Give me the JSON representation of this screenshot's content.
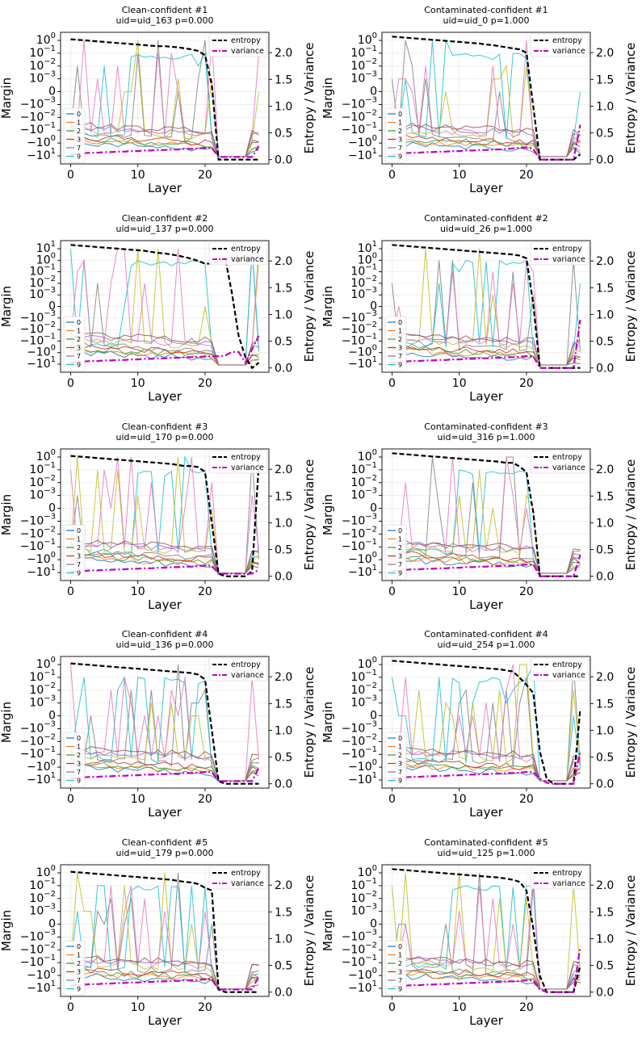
{
  "chart_data": [
    {
      "type": "line",
      "panel": "clean",
      "index": 1,
      "title": "Clean-confident #1",
      "subtitle": "uid=uid_163   p=0.000",
      "xlabel": "Layer",
      "ylabel": "Margin",
      "y2label": "Entropy / Variance",
      "xticks": [
        "0",
        "10",
        "20"
      ],
      "yticks": [
        "10^0",
        "10^-1",
        "10^-2",
        "10^-3",
        "0",
        "-10^-3",
        "-10^-2",
        "-10^-1",
        "-10^0",
        "-10^1"
      ],
      "y2ticks": [
        "0.0",
        "0.5",
        "1.0",
        "1.5",
        "2.0"
      ],
      "legend_lines": [
        "entropy",
        "variance"
      ],
      "legend_series": [
        "0",
        "1",
        "2",
        "3",
        "7",
        "9"
      ],
      "entropy": [
        2.25,
        2.24,
        2.23,
        2.22,
        2.21,
        2.2,
        2.19,
        2.18,
        2.17,
        2.16,
        2.15,
        2.14,
        2.13,
        2.12,
        2.12,
        2.11,
        2.1,
        2.08,
        2.06,
        2.03,
        1.95,
        1.4,
        0.0,
        0.0,
        0.0,
        0.0,
        0.0,
        0.0,
        0.0
      ],
      "variance": [
        0.1,
        0.11,
        0.12,
        0.13,
        0.13,
        0.14,
        0.14,
        0.15,
        0.15,
        0.16,
        0.16,
        0.17,
        0.17,
        0.18,
        0.18,
        0.19,
        0.19,
        0.2,
        0.2,
        0.21,
        0.22,
        0.22,
        0.05,
        0.05,
        0.05,
        0.05,
        0.05,
        0.05,
        0.25
      ]
    },
    {
      "type": "line",
      "panel": "contaminated",
      "index": 1,
      "title": "Contaminated-confident #1",
      "subtitle": "uid=uid_0   p=1.000",
      "xlabel": "Layer",
      "ylabel": "Margin",
      "y2label": "Entropy / Variance",
      "xticks": [
        "0",
        "10",
        "20"
      ],
      "yticks": [
        "10^0",
        "10^-1",
        "10^-2",
        "10^-3",
        "0",
        "-10^-3",
        "-10^-2",
        "-10^-1",
        "-10^0",
        "-10^1"
      ],
      "y2ticks": [
        "0.0",
        "0.5",
        "1.0",
        "1.5",
        "2.0"
      ],
      "legend_lines": [
        "entropy",
        "variance"
      ],
      "legend_series": [
        "0",
        "1",
        "2",
        "3",
        "7",
        "9"
      ],
      "entropy": [
        2.3,
        2.29,
        2.28,
        2.27,
        2.26,
        2.25,
        2.24,
        2.23,
        2.22,
        2.21,
        2.2,
        2.19,
        2.18,
        2.17,
        2.15,
        2.14,
        2.12,
        2.1,
        2.08,
        2.06,
        2.0,
        1.0,
        0.0,
        0.0,
        0.0,
        0.0,
        0.0,
        0.0,
        0.1
      ],
      "variance": [
        0.1,
        0.11,
        0.12,
        0.13,
        0.13,
        0.14,
        0.14,
        0.15,
        0.15,
        0.16,
        0.16,
        0.17,
        0.17,
        0.18,
        0.18,
        0.19,
        0.19,
        0.2,
        0.21,
        0.22,
        0.23,
        0.2,
        0.0,
        0.0,
        0.0,
        0.0,
        0.0,
        0.0,
        0.65
      ]
    },
    {
      "type": "line",
      "panel": "clean",
      "index": 2,
      "title": "Clean-confident #2",
      "subtitle": "uid=uid_137   p=0.000",
      "xlabel": "Layer",
      "ylabel": "Margin",
      "y2label": "Entropy / Variance",
      "xticks": [
        "0",
        "10",
        "20"
      ],
      "yticks": [
        "10^1",
        "10^0",
        "10^-1",
        "10^-2",
        "10^-3",
        "0",
        "-10^-3",
        "-10^-2",
        "-10^-1",
        "-10^0",
        "-10^1"
      ],
      "y2ticks": [
        "0.0",
        "0.5",
        "1.0",
        "1.5",
        "2.0"
      ],
      "legend_lines": [
        "entropy",
        "variance"
      ],
      "legend_series": [
        "0",
        "1",
        "2",
        "3",
        "7",
        "9"
      ],
      "entropy": [
        2.3,
        2.29,
        2.28,
        2.27,
        2.26,
        2.25,
        2.24,
        2.23,
        2.22,
        2.21,
        2.2,
        2.19,
        2.17,
        2.15,
        2.14,
        2.12,
        2.1,
        2.07,
        2.04,
        2.0,
        1.95,
        1.95,
        2.0,
        2.05,
        1.4,
        0.6,
        0.2,
        0.0,
        0.1
      ],
      "variance": [
        0.1,
        0.11,
        0.12,
        0.13,
        0.13,
        0.14,
        0.14,
        0.15,
        0.15,
        0.16,
        0.16,
        0.17,
        0.17,
        0.18,
        0.18,
        0.19,
        0.19,
        0.2,
        0.2,
        0.21,
        0.21,
        0.22,
        0.22,
        0.23,
        0.3,
        0.3,
        0.1,
        0.35,
        0.6
      ]
    },
    {
      "type": "line",
      "panel": "contaminated",
      "index": 2,
      "title": "Contaminated-confident #2",
      "subtitle": "uid=uid_26   p=1.000",
      "xlabel": "Layer",
      "ylabel": "Margin",
      "y2label": "Entropy / Variance",
      "xticks": [
        "0",
        "10",
        "20"
      ],
      "yticks": [
        "10^1",
        "10^0",
        "10^-1",
        "10^-2",
        "10^-3",
        "0",
        "-10^-3",
        "-10^-2",
        "-10^-1",
        "-10^0",
        "-10^1"
      ],
      "y2ticks": [
        "0.0",
        "0.5",
        "1.0",
        "1.5",
        "2.0"
      ],
      "legend_lines": [
        "entropy",
        "variance"
      ],
      "legend_series": [
        "0",
        "1",
        "2",
        "3",
        "7",
        "9"
      ],
      "entropy": [
        2.3,
        2.29,
        2.28,
        2.27,
        2.26,
        2.25,
        2.24,
        2.23,
        2.22,
        2.21,
        2.2,
        2.19,
        2.18,
        2.17,
        2.16,
        2.15,
        2.14,
        2.13,
        2.12,
        2.1,
        2.05,
        1.2,
        0.0,
        0.0,
        0.0,
        0.0,
        0.0,
        0.0,
        0.0
      ],
      "variance": [
        0.1,
        0.11,
        0.12,
        0.13,
        0.13,
        0.14,
        0.14,
        0.15,
        0.15,
        0.16,
        0.16,
        0.17,
        0.17,
        0.18,
        0.18,
        0.19,
        0.19,
        0.2,
        0.2,
        0.21,
        0.22,
        0.22,
        0.0,
        0.0,
        0.0,
        0.0,
        0.0,
        0.0,
        0.9
      ]
    },
    {
      "type": "line",
      "panel": "clean",
      "index": 3,
      "title": "Clean-confident #3",
      "subtitle": "uid=uid_170   p=0.000",
      "xlabel": "Layer",
      "ylabel": "Margin",
      "y2label": "Entropy / Variance",
      "xticks": [
        "0",
        "10",
        "20"
      ],
      "yticks": [
        "10^0",
        "10^-1",
        "10^-2",
        "10^-3",
        "0",
        "-10^-3",
        "-10^-2",
        "-10^-1",
        "-10^0",
        "-10^1"
      ],
      "y2ticks": [
        "0.0",
        "0.5",
        "1.0",
        "1.5",
        "2.0"
      ],
      "legend_lines": [
        "entropy",
        "variance"
      ],
      "legend_series": [
        "0",
        "1",
        "2",
        "3",
        "7",
        "9"
      ],
      "entropy": [
        2.25,
        2.24,
        2.23,
        2.22,
        2.21,
        2.2,
        2.19,
        2.18,
        2.17,
        2.16,
        2.15,
        2.14,
        2.13,
        2.12,
        2.11,
        2.1,
        2.08,
        2.06,
        2.06,
        2.04,
        1.95,
        1.0,
        0.05,
        0.0,
        0.0,
        0.0,
        0.0,
        0.1,
        2.1
      ],
      "variance": [
        0.08,
        0.09,
        0.1,
        0.11,
        0.11,
        0.12,
        0.12,
        0.13,
        0.13,
        0.14,
        0.14,
        0.15,
        0.15,
        0.16,
        0.16,
        0.17,
        0.17,
        0.18,
        0.18,
        0.19,
        0.2,
        0.2,
        0.05,
        0.05,
        0.05,
        0.05,
        0.05,
        0.05,
        0.12
      ]
    },
    {
      "type": "line",
      "panel": "contaminated",
      "index": 3,
      "title": "Contaminated-confident #3",
      "subtitle": "uid=uid_316   p=1.000",
      "xlabel": "Layer",
      "ylabel": "Margin",
      "y2label": "Entropy / Variance",
      "xticks": [
        "0",
        "10",
        "20"
      ],
      "yticks": [
        "10^0",
        "10^-1",
        "10^-2",
        "10^-3",
        "0",
        "-10^-3",
        "-10^-2",
        "-10^-1",
        "-10^0",
        "-10^1"
      ],
      "y2ticks": [
        "0.0",
        "0.5",
        "1.0",
        "1.5",
        "2.0"
      ],
      "legend_lines": [
        "entropy",
        "variance"
      ],
      "legend_series": [
        "0",
        "1",
        "2",
        "3",
        "7",
        "9"
      ],
      "entropy": [
        2.3,
        2.29,
        2.28,
        2.27,
        2.26,
        2.25,
        2.24,
        2.23,
        2.22,
        2.21,
        2.2,
        2.19,
        2.18,
        2.17,
        2.16,
        2.15,
        2.14,
        2.12,
        2.12,
        2.05,
        1.95,
        1.2,
        0.0,
        0.0,
        0.0,
        0.0,
        0.0,
        0.0,
        0.0
      ],
      "variance": [
        0.1,
        0.11,
        0.12,
        0.13,
        0.13,
        0.14,
        0.14,
        0.15,
        0.15,
        0.16,
        0.16,
        0.17,
        0.17,
        0.18,
        0.18,
        0.19,
        0.19,
        0.2,
        0.2,
        0.21,
        0.22,
        0.22,
        0.0,
        0.0,
        0.0,
        0.0,
        0.0,
        0.0,
        0.4
      ]
    },
    {
      "type": "line",
      "panel": "clean",
      "index": 4,
      "title": "Clean-confident #4",
      "subtitle": "uid=uid_136   p=0.000",
      "xlabel": "Layer",
      "ylabel": "Margin",
      "y2label": "Entropy / Variance",
      "xticks": [
        "0",
        "10",
        "20"
      ],
      "yticks": [
        "10^0",
        "10^-1",
        "10^-2",
        "10^-3",
        "0",
        "-10^-3",
        "-10^-2",
        "-10^-1",
        "-10^0",
        "-10^1"
      ],
      "y2ticks": [
        "0.0",
        "0.5",
        "1.0",
        "1.5",
        "2.0"
      ],
      "legend_lines": [
        "entropy",
        "variance"
      ],
      "legend_series": [
        "0",
        "1",
        "2",
        "3",
        "7",
        "9"
      ],
      "entropy": [
        2.25,
        2.24,
        2.23,
        2.22,
        2.21,
        2.2,
        2.19,
        2.18,
        2.17,
        2.16,
        2.15,
        2.14,
        2.13,
        2.12,
        2.11,
        2.1,
        2.09,
        2.08,
        2.07,
        2.04,
        1.95,
        1.0,
        0.05,
        0.0,
        0.0,
        0.0,
        0.0,
        0.0,
        0.0
      ],
      "variance": [
        0.1,
        0.11,
        0.12,
        0.13,
        0.13,
        0.14,
        0.14,
        0.15,
        0.15,
        0.16,
        0.16,
        0.17,
        0.17,
        0.18,
        0.18,
        0.19,
        0.19,
        0.2,
        0.2,
        0.21,
        0.22,
        0.22,
        0.05,
        0.05,
        0.05,
        0.05,
        0.05,
        0.05,
        0.3
      ]
    },
    {
      "type": "line",
      "panel": "contaminated",
      "index": 4,
      "title": "Contaminated-confident #4",
      "subtitle": "uid=uid_254   p=1.000",
      "xlabel": "Layer",
      "ylabel": "Margin",
      "y2label": "Entropy / Variance",
      "xticks": [
        "0",
        "10",
        "20"
      ],
      "yticks": [
        "10^0",
        "10^-1",
        "10^-2",
        "10^-3",
        "0",
        "-10^-3",
        "-10^-2",
        "-10^-1",
        "-10^0",
        "-10^1"
      ],
      "y2ticks": [
        "0.0",
        "0.5",
        "1.0",
        "1.5",
        "2.0"
      ],
      "legend_lines": [
        "entropy",
        "variance"
      ],
      "legend_series": [
        "0",
        "1",
        "2",
        "3",
        "7",
        "9"
      ],
      "entropy": [
        2.3,
        2.29,
        2.28,
        2.27,
        2.26,
        2.25,
        2.24,
        2.23,
        2.22,
        2.21,
        2.2,
        2.19,
        2.18,
        2.17,
        2.16,
        2.15,
        2.14,
        2.12,
        2.1,
        1.98,
        1.85,
        1.7,
        0.6,
        0.1,
        0.0,
        0.0,
        0.0,
        0.0,
        1.4
      ],
      "variance": [
        0.1,
        0.11,
        0.12,
        0.13,
        0.13,
        0.14,
        0.14,
        0.15,
        0.15,
        0.16,
        0.16,
        0.17,
        0.17,
        0.18,
        0.18,
        0.19,
        0.19,
        0.2,
        0.2,
        0.21,
        0.22,
        0.22,
        0.1,
        0.02,
        0.0,
        0.0,
        0.0,
        0.0,
        0.6
      ]
    },
    {
      "type": "line",
      "panel": "clean",
      "index": 5,
      "title": "Clean-confident #5",
      "subtitle": "uid=uid_179   p=0.000",
      "xlabel": "Layer",
      "ylabel": "Margin",
      "y2label": "Entropy / Variance",
      "xticks": [
        "0",
        "10",
        "20"
      ],
      "yticks": [
        "10^0",
        "10^-1",
        "10^-2",
        "10^-3",
        "0",
        "-10^-3",
        "-10^-2",
        "-10^-1",
        "-10^0",
        "-10^1"
      ],
      "y2ticks": [
        "0.0",
        "0.5",
        "1.0",
        "1.5",
        "2.0"
      ],
      "legend_lines": [
        "entropy",
        "variance"
      ],
      "legend_series": [
        "0",
        "1",
        "2",
        "3",
        "7",
        "9"
      ],
      "entropy": [
        2.25,
        2.24,
        2.23,
        2.22,
        2.21,
        2.2,
        2.19,
        2.18,
        2.17,
        2.16,
        2.15,
        2.14,
        2.13,
        2.12,
        2.11,
        2.1,
        2.08,
        2.06,
        2.05,
        2.02,
        1.95,
        1.9,
        0.05,
        0.0,
        0.0,
        0.0,
        0.0,
        0.0,
        0.0
      ],
      "variance": [
        0.12,
        0.13,
        0.14,
        0.15,
        0.15,
        0.16,
        0.16,
        0.17,
        0.17,
        0.18,
        0.18,
        0.19,
        0.19,
        0.2,
        0.2,
        0.21,
        0.21,
        0.22,
        0.22,
        0.23,
        0.24,
        0.24,
        0.05,
        0.05,
        0.05,
        0.05,
        0.05,
        0.05,
        0.3
      ]
    },
    {
      "type": "line",
      "panel": "contaminated",
      "index": 5,
      "title": "Contaminated-confident #5",
      "subtitle": "uid=uid_125   p=1.000",
      "xlabel": "Layer",
      "ylabel": "Margin",
      "y2label": "Entropy / Variance",
      "xticks": [
        "0",
        "10",
        "20"
      ],
      "yticks": [
        "10^0",
        "10^-1",
        "10^-2",
        "10^-3",
        "0",
        "-10^-3",
        "-10^-2",
        "-10^-1",
        "-10^0",
        "-10^1"
      ],
      "y2ticks": [
        "0.0",
        "0.5",
        "1.0",
        "1.5",
        "2.0"
      ],
      "legend_lines": [
        "entropy",
        "variance"
      ],
      "legend_series": [
        "0",
        "1",
        "2",
        "3",
        "7",
        "9"
      ],
      "entropy": [
        2.3,
        2.29,
        2.28,
        2.27,
        2.26,
        2.25,
        2.24,
        2.23,
        2.22,
        2.21,
        2.2,
        2.19,
        2.18,
        2.17,
        2.16,
        2.15,
        2.14,
        2.12,
        2.1,
        2.06,
        1.9,
        1.2,
        0.3,
        0.0,
        0.0,
        0.0,
        0.0,
        0.0,
        0.5
      ],
      "variance": [
        0.1,
        0.11,
        0.12,
        0.13,
        0.13,
        0.14,
        0.14,
        0.15,
        0.15,
        0.16,
        0.16,
        0.17,
        0.17,
        0.18,
        0.18,
        0.19,
        0.19,
        0.2,
        0.2,
        0.21,
        0.22,
        0.22,
        0.05,
        0.0,
        0.0,
        0.0,
        0.0,
        0.0,
        0.85
      ]
    }
  ],
  "series_colors": {
    "0": "#1f77b4",
    "1": "#ff7f0e",
    "2": "#2ca02c",
    "3": "#d62728",
    "4": "#9467bd",
    "5": "#8c564b",
    "6": "#e377c2",
    "7": "#7f7f7f",
    "8": "#bcbd22",
    "9": "#17becf"
  },
  "entropy_color": "#000000",
  "variance_color": "#c000c0"
}
